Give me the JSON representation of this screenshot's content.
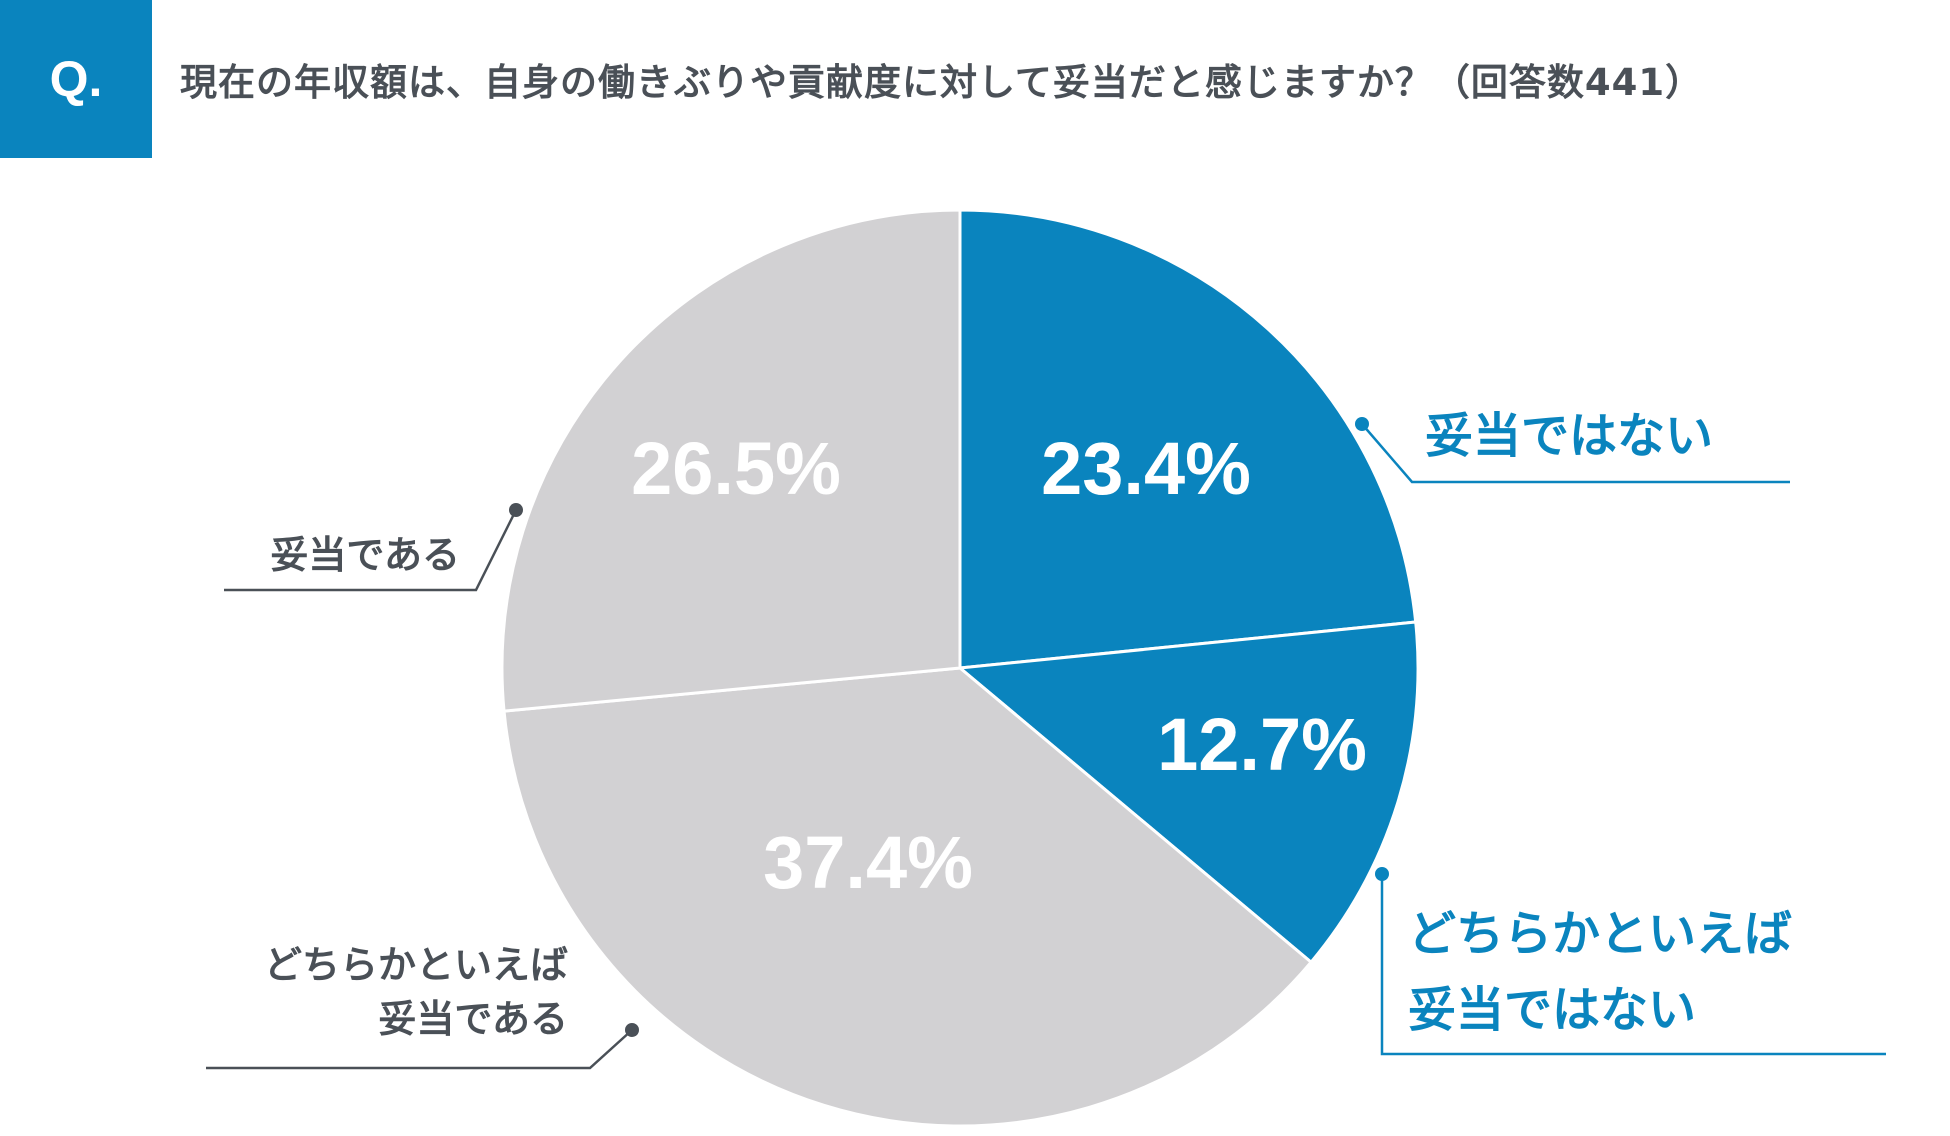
{
  "header": {
    "badge": "Q.",
    "question": "現在の年収額は、自身の働きぶりや貢献度に対して妥当だと感じますか？（回答数441）"
  },
  "colors": {
    "blue": "#0a84be",
    "gray": "#d2d1d3",
    "label_gray": "#4a5057"
  },
  "chart_data": {
    "type": "pie",
    "total_responses": 441,
    "start": "12 o'clock",
    "direction": "clockwise",
    "slices": [
      {
        "label_lines": [
          "妥当ではない"
        ],
        "value": 23.4,
        "value_label": "23.4%",
        "color": "#0a84be"
      },
      {
        "label_lines": [
          "どちらかといえば",
          "妥当ではない"
        ],
        "value": 12.7,
        "value_label": "12.7%",
        "color": "#0a84be"
      },
      {
        "label_lines": [
          "どちらかといえば",
          "妥当である"
        ],
        "value": 37.4,
        "value_label": "37.4%",
        "color": "#d2d1d3"
      },
      {
        "label_lines": [
          "妥当である"
        ],
        "value": 26.5,
        "value_label": "26.5%",
        "color": "#d2d1d3"
      }
    ]
  }
}
